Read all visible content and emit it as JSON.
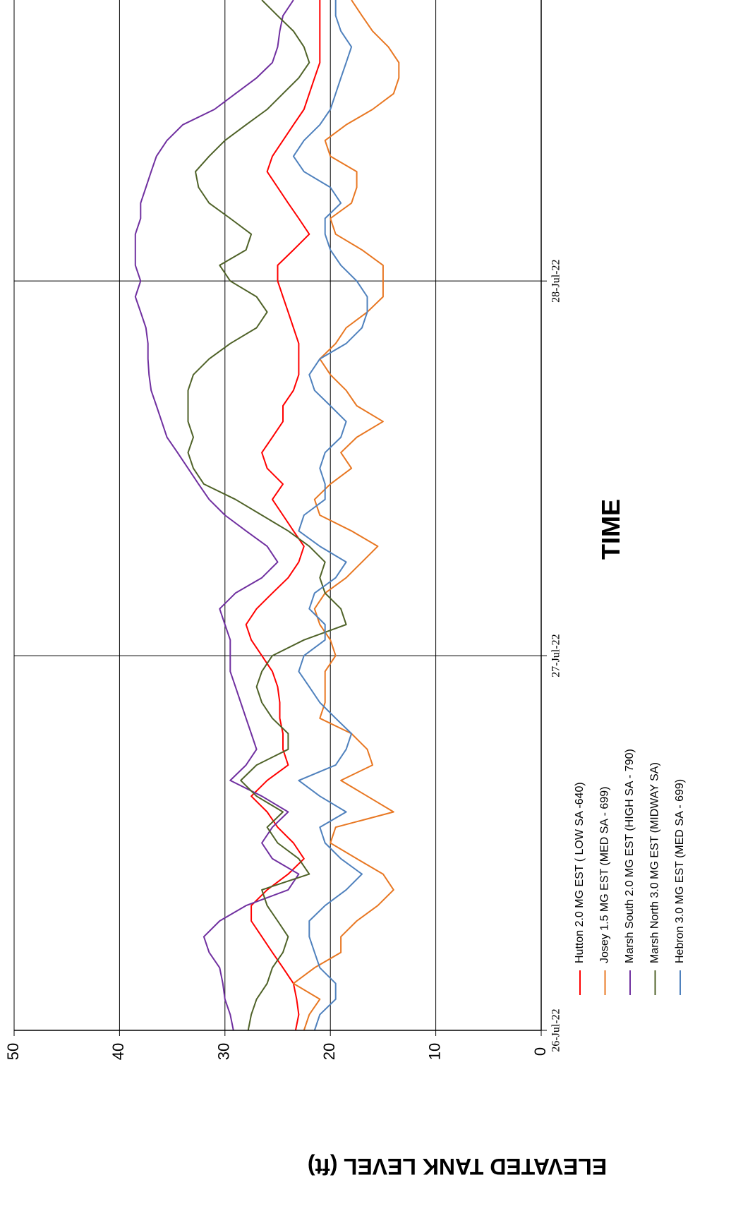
{
  "chart_data": {
    "type": "line",
    "title": "",
    "xlabel": "TIME",
    "ylabel": "ELEVATED TANK LEVEL (ft)",
    "ylim": [
      0,
      50
    ],
    "y_ticks": [
      "0",
      "10",
      "20",
      "30",
      "40",
      "50"
    ],
    "x_ticks": [
      "26-Jul-22",
      "27-Jul-22",
      "28-Jul-22"
    ],
    "grid": true,
    "legend_position": "bottom",
    "x": [
      0,
      0.042,
      0.083,
      0.125,
      0.167,
      0.208,
      0.25,
      0.292,
      0.333,
      0.375,
      0.417,
      0.458,
      0.5,
      0.542,
      0.583,
      0.625,
      0.667,
      0.708,
      0.75,
      0.792,
      0.833,
      0.875,
      0.917,
      0.958,
      1.0,
      1.042,
      1.083,
      1.125,
      1.167,
      1.208,
      1.25,
      1.292,
      1.333,
      1.375,
      1.417,
      1.458,
      1.5,
      1.542,
      1.583,
      1.625,
      1.667,
      1.708,
      1.75,
      1.792,
      1.833,
      1.875,
      1.917,
      1.958,
      2.0,
      2.042,
      2.083,
      2.125,
      2.167,
      2.208,
      2.25,
      2.292,
      2.333,
      2.375,
      2.417,
      2.458,
      2.5,
      2.542,
      2.583,
      2.625,
      2.667,
      2.708,
      2.75
    ],
    "series": [
      {
        "name": "Hutton 2.0 MG EST ( LOW SA -640)",
        "color": "#ff0000",
        "values": [
          23.3,
          23.0,
          23.2,
          23.5,
          24.5,
          25.5,
          26.5,
          27.5,
          27.5,
          26.0,
          24.0,
          22.5,
          23.5,
          25.0,
          26.0,
          27.5,
          26.0,
          24.0,
          24.5,
          24.5,
          24.8,
          24.8,
          25.0,
          25.5,
          26.5,
          27.5,
          28.0,
          27.0,
          25.5,
          24.0,
          23.0,
          22.5,
          23.5,
          24.5,
          25.5,
          24.5,
          26.0,
          26.5,
          25.5,
          24.5,
          24.5,
          23.5,
          23.0,
          23.0,
          23.0,
          23.5,
          24.0,
          24.5,
          25.0,
          25.0,
          23.5,
          22.0,
          23.0,
          24.0,
          25.0,
          26.0,
          25.5,
          24.5,
          23.5,
          22.5,
          22.0,
          21.5,
          21.0,
          21.0,
          21.0,
          21.0,
          21.0
        ]
      },
      {
        "name": "Josey 1.5 MG EST (MED SA - 699)",
        "color": "#e87722",
        "values": [
          22.5,
          22.0,
          21.0,
          23.5,
          21.5,
          19.0,
          19.0,
          17.5,
          15.5,
          14.0,
          15.0,
          17.5,
          20.0,
          19.5,
          14.0,
          16.5,
          19.0,
          16.0,
          16.5,
          18.0,
          21.0,
          20.5,
          20.5,
          20.5,
          19.5,
          20.0,
          21.0,
          21.5,
          20.5,
          18.5,
          17.0,
          15.5,
          18.0,
          21.0,
          21.5,
          20.0,
          18.0,
          19.0,
          17.5,
          15.0,
          17.5,
          18.5,
          20.0,
          21.0,
          19.5,
          18.5,
          16.5,
          15.0,
          15.0,
          15.0,
          17.0,
          19.5,
          20.0,
          18.0,
          17.5,
          17.5,
          20.0,
          20.5,
          18.5,
          16.0,
          14.0,
          13.5,
          13.5,
          14.5,
          16.0,
          17.0,
          18.0
        ]
      },
      {
        "name": "Marsh South 2.0 MG EST (HIGH SA - 790)",
        "color": "#7030a0",
        "values": [
          29.2,
          29.5,
          30.0,
          30.2,
          30.5,
          31.5,
          32.0,
          30.5,
          28.0,
          24.0,
          23.0,
          25.5,
          26.5,
          25.5,
          24.0,
          26.5,
          29.5,
          28.0,
          27.0,
          27.5,
          28.0,
          28.5,
          29.0,
          29.5,
          29.5,
          29.5,
          30.0,
          30.5,
          29.0,
          26.5,
          25.0,
          26.0,
          28.0,
          30.0,
          31.5,
          32.5,
          33.5,
          34.5,
          35.5,
          36.0,
          36.5,
          37.0,
          37.2,
          37.3,
          37.3,
          37.5,
          38.0,
          38.5,
          38.0,
          38.5,
          38.5,
          38.5,
          38.0,
          38.0,
          37.5,
          37.0,
          36.5,
          35.5,
          34.0,
          31.0,
          29.0,
          27.0,
          25.5,
          25.0,
          24.8,
          24.5,
          23.5
        ]
      },
      {
        "name": "Marsh North 3.0 MG EST (MIDWAY SA)",
        "color": "#4f6228",
        "values": [
          27.8,
          27.5,
          27.0,
          26.0,
          25.5,
          24.5,
          24.0,
          25.0,
          26.0,
          26.5,
          22.0,
          23.0,
          25.0,
          26.0,
          24.5,
          27.0,
          28.5,
          27.0,
          24.0,
          24.0,
          25.5,
          26.5,
          27.0,
          26.5,
          25.5,
          22.5,
          18.5,
          19.0,
          20.5,
          21.0,
          20.5,
          22.0,
          24.0,
          26.5,
          29.0,
          32.0,
          33.0,
          33.5,
          33.0,
          33.5,
          33.5,
          33.5,
          33.0,
          31.5,
          29.5,
          27.0,
          26.0,
          27.0,
          29.5,
          30.5,
          28.0,
          27.5,
          29.5,
          31.5,
          32.5,
          32.8,
          31.5,
          30.0,
          28.0,
          26.0,
          24.5,
          23.0,
          22.0,
          22.5,
          23.5,
          25.0,
          26.5
        ]
      },
      {
        "name": "Hebron 3.0 MG EST (MED SA - 699)",
        "color": "#4f81bd",
        "values": [
          21.5,
          21.0,
          19.5,
          19.5,
          21.0,
          21.5,
          22.0,
          22.0,
          20.5,
          18.5,
          17.0,
          19.0,
          20.5,
          21.0,
          18.5,
          21.0,
          23.0,
          19.5,
          18.5,
          18.0,
          19.5,
          21.0,
          22.0,
          23.0,
          22.5,
          20.5,
          20.5,
          22.0,
          21.5,
          19.5,
          18.5,
          21.0,
          23.0,
          22.5,
          20.5,
          20.5,
          21.0,
          20.5,
          19.0,
          18.5,
          20.0,
          21.5,
          22.0,
          21.0,
          18.5,
          17.0,
          16.5,
          16.5,
          17.5,
          19.0,
          20.0,
          20.5,
          20.5,
          19.0,
          20.0,
          22.5,
          23.5,
          22.5,
          21.0,
          20.0,
          19.5,
          19.0,
          18.5,
          18.0,
          19.0,
          19.5,
          19.5
        ]
      }
    ]
  }
}
